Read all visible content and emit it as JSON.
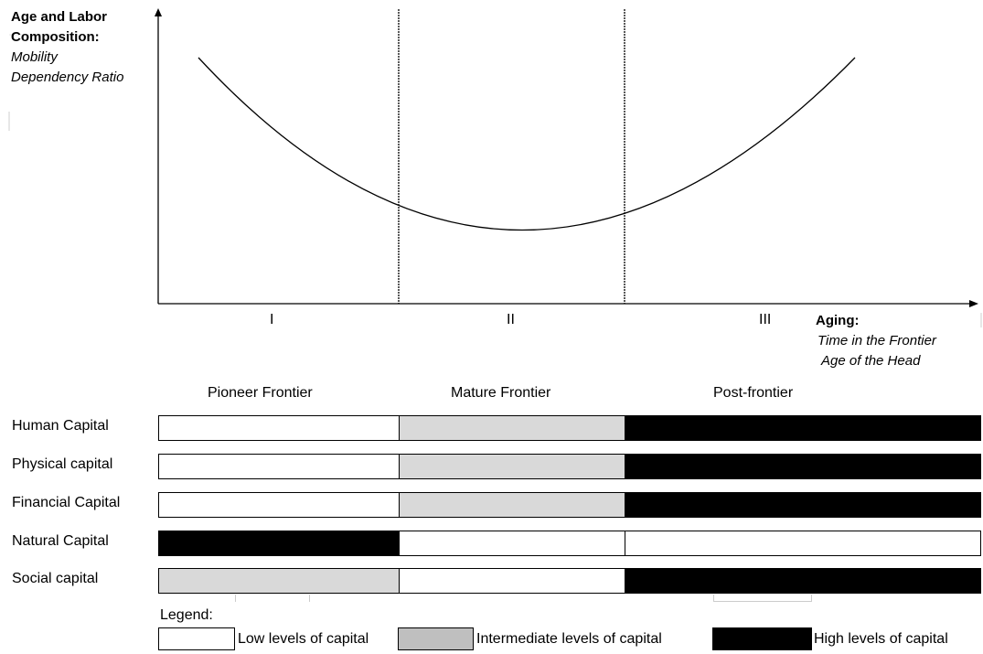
{
  "y_axis": {
    "title_bold": [
      "Age and Labor",
      "Composition:"
    ],
    "title_italic": [
      "Mobility",
      "Dependency Ratio"
    ]
  },
  "x_axis": {
    "title_bold": "Aging:",
    "title_italic": [
      "Time in the Frontier",
      "Age of the Head"
    ]
  },
  "phases": [
    "I",
    "II",
    "III"
  ],
  "stages": [
    "Pioneer Frontier",
    "Mature Frontier",
    "Post-frontier"
  ],
  "capital_rows": [
    {
      "label": "Human Capital",
      "levels": [
        "low",
        "intermediate",
        "high"
      ]
    },
    {
      "label": "Physical capital",
      "levels": [
        "low",
        "intermediate",
        "high"
      ]
    },
    {
      "label": "Financial Capital",
      "levels": [
        "low",
        "intermediate",
        "high"
      ]
    },
    {
      "label": "Natural Capital",
      "levels": [
        "high",
        "low",
        "low"
      ]
    },
    {
      "label": "Social capital",
      "levels": [
        "intermediate",
        "low",
        "high"
      ]
    }
  ],
  "legend": {
    "title": "Legend:",
    "low": "Low levels of capital",
    "intermediate": "Intermediate levels of capital",
    "high": "High levels of capital"
  },
  "colors": {
    "low": "#ffffff",
    "intermediate": "#d9d9d9",
    "high": "#000000"
  }
}
